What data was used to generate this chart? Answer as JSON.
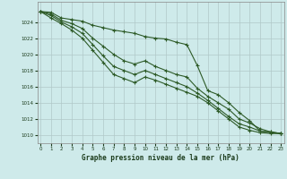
{
  "title": "Graphe pression niveau de la mer (hPa)",
  "background_color": "#ceeaea",
  "grid_color": "#b0c8c8",
  "line_color": "#2d5a27",
  "x_values": [
    0,
    1,
    2,
    3,
    4,
    5,
    6,
    7,
    8,
    9,
    10,
    11,
    12,
    13,
    14,
    15,
    16,
    17,
    18,
    19,
    20,
    21,
    22,
    23
  ],
  "series1": [
    1025.3,
    1025.2,
    1024.5,
    1024.3,
    1024.1,
    1023.6,
    1023.3,
    1023.0,
    1022.8,
    1022.6,
    1022.2,
    1022.0,
    1021.9,
    1021.5,
    1021.2,
    1018.6,
    1015.5,
    1015.0,
    1014.0,
    1012.8,
    1011.8,
    1010.5,
    1010.4,
    1010.2
  ],
  "series2": [
    1025.3,
    1025.0,
    1024.2,
    1023.8,
    1023.2,
    1022.0,
    1021.0,
    1020.0,
    1019.2,
    1018.8,
    1019.2,
    1018.5,
    1018.0,
    1017.5,
    1017.2,
    1015.8,
    1014.8,
    1014.0,
    1013.2,
    1012.0,
    1011.5,
    1010.8,
    1010.4,
    1010.2
  ],
  "series3": [
    1025.3,
    1024.8,
    1024.0,
    1023.4,
    1022.6,
    1021.2,
    1019.8,
    1018.5,
    1018.0,
    1017.5,
    1018.0,
    1017.5,
    1017.0,
    1016.5,
    1016.0,
    1015.2,
    1014.3,
    1013.3,
    1012.3,
    1011.4,
    1011.0,
    1010.5,
    1010.3,
    1010.2
  ],
  "series4": [
    1025.3,
    1024.5,
    1023.8,
    1023.0,
    1022.0,
    1020.5,
    1019.0,
    1017.5,
    1017.0,
    1016.5,
    1017.2,
    1016.8,
    1016.3,
    1015.8,
    1015.3,
    1014.8,
    1014.0,
    1013.0,
    1012.0,
    1011.0,
    1010.6,
    1010.3,
    1010.2,
    1010.2
  ],
  "ylim": [
    1009.0,
    1026.5
  ],
  "yticks": [
    1010,
    1012,
    1014,
    1016,
    1018,
    1020,
    1022,
    1024
  ],
  "xlim": [
    -0.3,
    23.3
  ],
  "xticks": [
    0,
    1,
    2,
    3,
    4,
    5,
    6,
    7,
    8,
    9,
    10,
    11,
    12,
    13,
    14,
    15,
    16,
    17,
    18,
    19,
    20,
    21,
    22,
    23
  ],
  "marker": "+",
  "markersize": 3,
  "linewidth": 0.8
}
